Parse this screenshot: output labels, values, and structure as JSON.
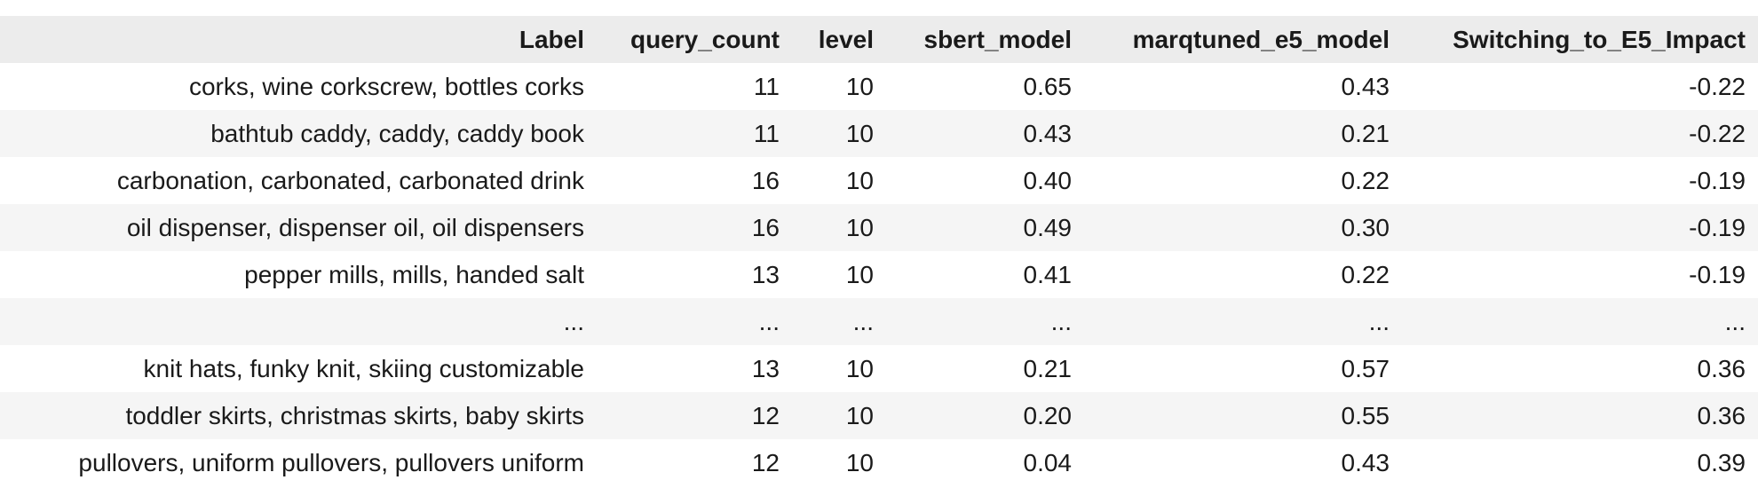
{
  "table": {
    "columns": [
      "Label",
      "query_count",
      "level",
      "sbert_model",
      "marqtuned_e5_model",
      "Switching_to_E5_Impact"
    ],
    "rows": [
      [
        "corks, wine corkscrew, bottles corks",
        "11",
        "10",
        "0.65",
        "0.43",
        "-0.22"
      ],
      [
        "bathtub caddy, caddy, caddy book",
        "11",
        "10",
        "0.43",
        "0.21",
        "-0.22"
      ],
      [
        "carbonation, carbonated, carbonated drink",
        "16",
        "10",
        "0.40",
        "0.22",
        "-0.19"
      ],
      [
        "oil dispenser, dispenser oil, oil dispensers",
        "16",
        "10",
        "0.49",
        "0.30",
        "-0.19"
      ],
      [
        "pepper mills, mills, handed salt",
        "13",
        "10",
        "0.41",
        "0.22",
        "-0.19"
      ],
      [
        "...",
        "...",
        "...",
        "...",
        "...",
        "..."
      ],
      [
        "knit hats, funky knit, skiing customizable",
        "13",
        "10",
        "0.21",
        "0.57",
        "0.36"
      ],
      [
        "toddler skirts, christmas skirts, baby skirts",
        "12",
        "10",
        "0.20",
        "0.55",
        "0.36"
      ],
      [
        "pullovers, uniform pullovers, pullovers uniform",
        "12",
        "10",
        "0.04",
        "0.43",
        "0.39"
      ]
    ]
  }
}
